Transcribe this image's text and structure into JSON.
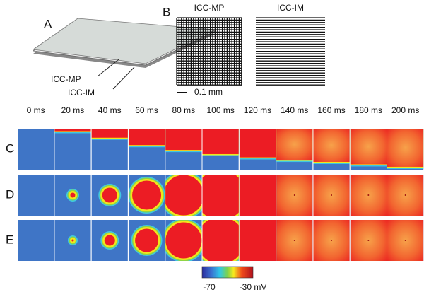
{
  "panel_a": {
    "label": "A",
    "layers": [
      "ICC-MP",
      "ICC-IM"
    ]
  },
  "panel_b": {
    "label": "B",
    "titles": [
      "ICC-MP",
      "ICC-IM"
    ],
    "scale": "0.1 mm"
  },
  "simulation": {
    "times": [
      "0 ms",
      "20 ms",
      "40 ms",
      "60 ms",
      "80 ms",
      "100 ms",
      "120 ms",
      "140 ms",
      "160 ms",
      "180 ms",
      "200 ms"
    ],
    "rows": [
      "C",
      "D",
      "E"
    ]
  },
  "colorbar": {
    "min_label": "-70",
    "max_label": "-30 mV"
  }
}
